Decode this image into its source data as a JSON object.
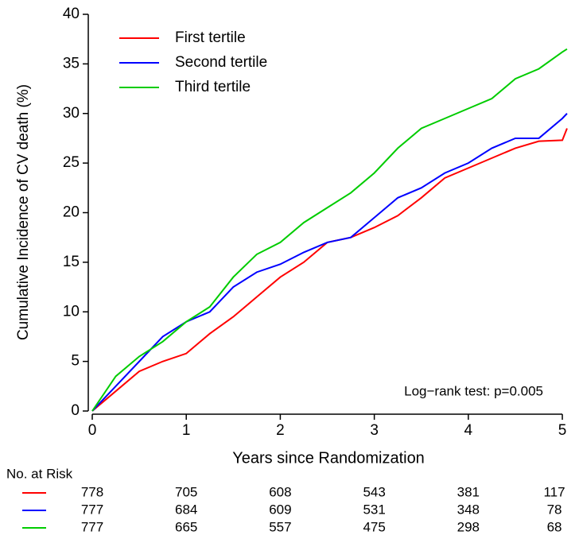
{
  "chart_data": {
    "type": "line",
    "xlabel": "Years since Randomization",
    "ylabel": "Cumulative Incidence of CV death (%)",
    "annotation": "Log−rank test: p=0.005",
    "x": [
      0,
      0.25,
      0.5,
      0.75,
      1,
      1.25,
      1.5,
      1.75,
      2,
      2.25,
      2.5,
      2.75,
      3,
      3.25,
      3.5,
      3.75,
      4,
      4.25,
      4.5,
      4.75,
      5,
      5.05
    ],
    "series": [
      {
        "name": "First tertile",
        "color": "#ff0000",
        "values": [
          0,
          2,
          4,
          5,
          5.8,
          7.8,
          9.5,
          11.5,
          13.5,
          15,
          17,
          17.5,
          18.5,
          19.7,
          21.5,
          23.5,
          24.5,
          25.5,
          26.5,
          27.2,
          27.3,
          28.5
        ]
      },
      {
        "name": "Second tertile",
        "color": "#0000ff",
        "values": [
          0,
          2.5,
          5,
          7.5,
          9,
          10,
          12.5,
          14,
          14.8,
          16,
          17,
          17.5,
          19.5,
          21.5,
          22.5,
          24,
          25,
          26.5,
          27.5,
          27.5,
          29.5,
          30
        ]
      },
      {
        "name": "Third tertile",
        "color": "#00cc00",
        "values": [
          0,
          3.5,
          5.5,
          7,
          9,
          10.5,
          13.5,
          15.8,
          17,
          19,
          20.5,
          22,
          24,
          26.5,
          28.5,
          29.5,
          30.5,
          31.5,
          33.5,
          34.5,
          36.2,
          36.5
        ]
      }
    ],
    "xlim": [
      0,
      5.08
    ],
    "xticks": [
      0,
      1,
      2,
      3,
      4,
      5
    ],
    "ylim": [
      0,
      40
    ],
    "yticks": [
      0,
      5,
      10,
      15,
      20,
      25,
      30,
      35,
      40
    ],
    "legend": "top-left",
    "risk_table": {
      "label": "No. at Risk",
      "rows": [
        [
          778,
          705,
          608,
          543,
          381,
          117
        ],
        [
          777,
          684,
          609,
          531,
          348,
          78
        ],
        [
          777,
          665,
          557,
          475,
          298,
          68
        ]
      ]
    }
  }
}
